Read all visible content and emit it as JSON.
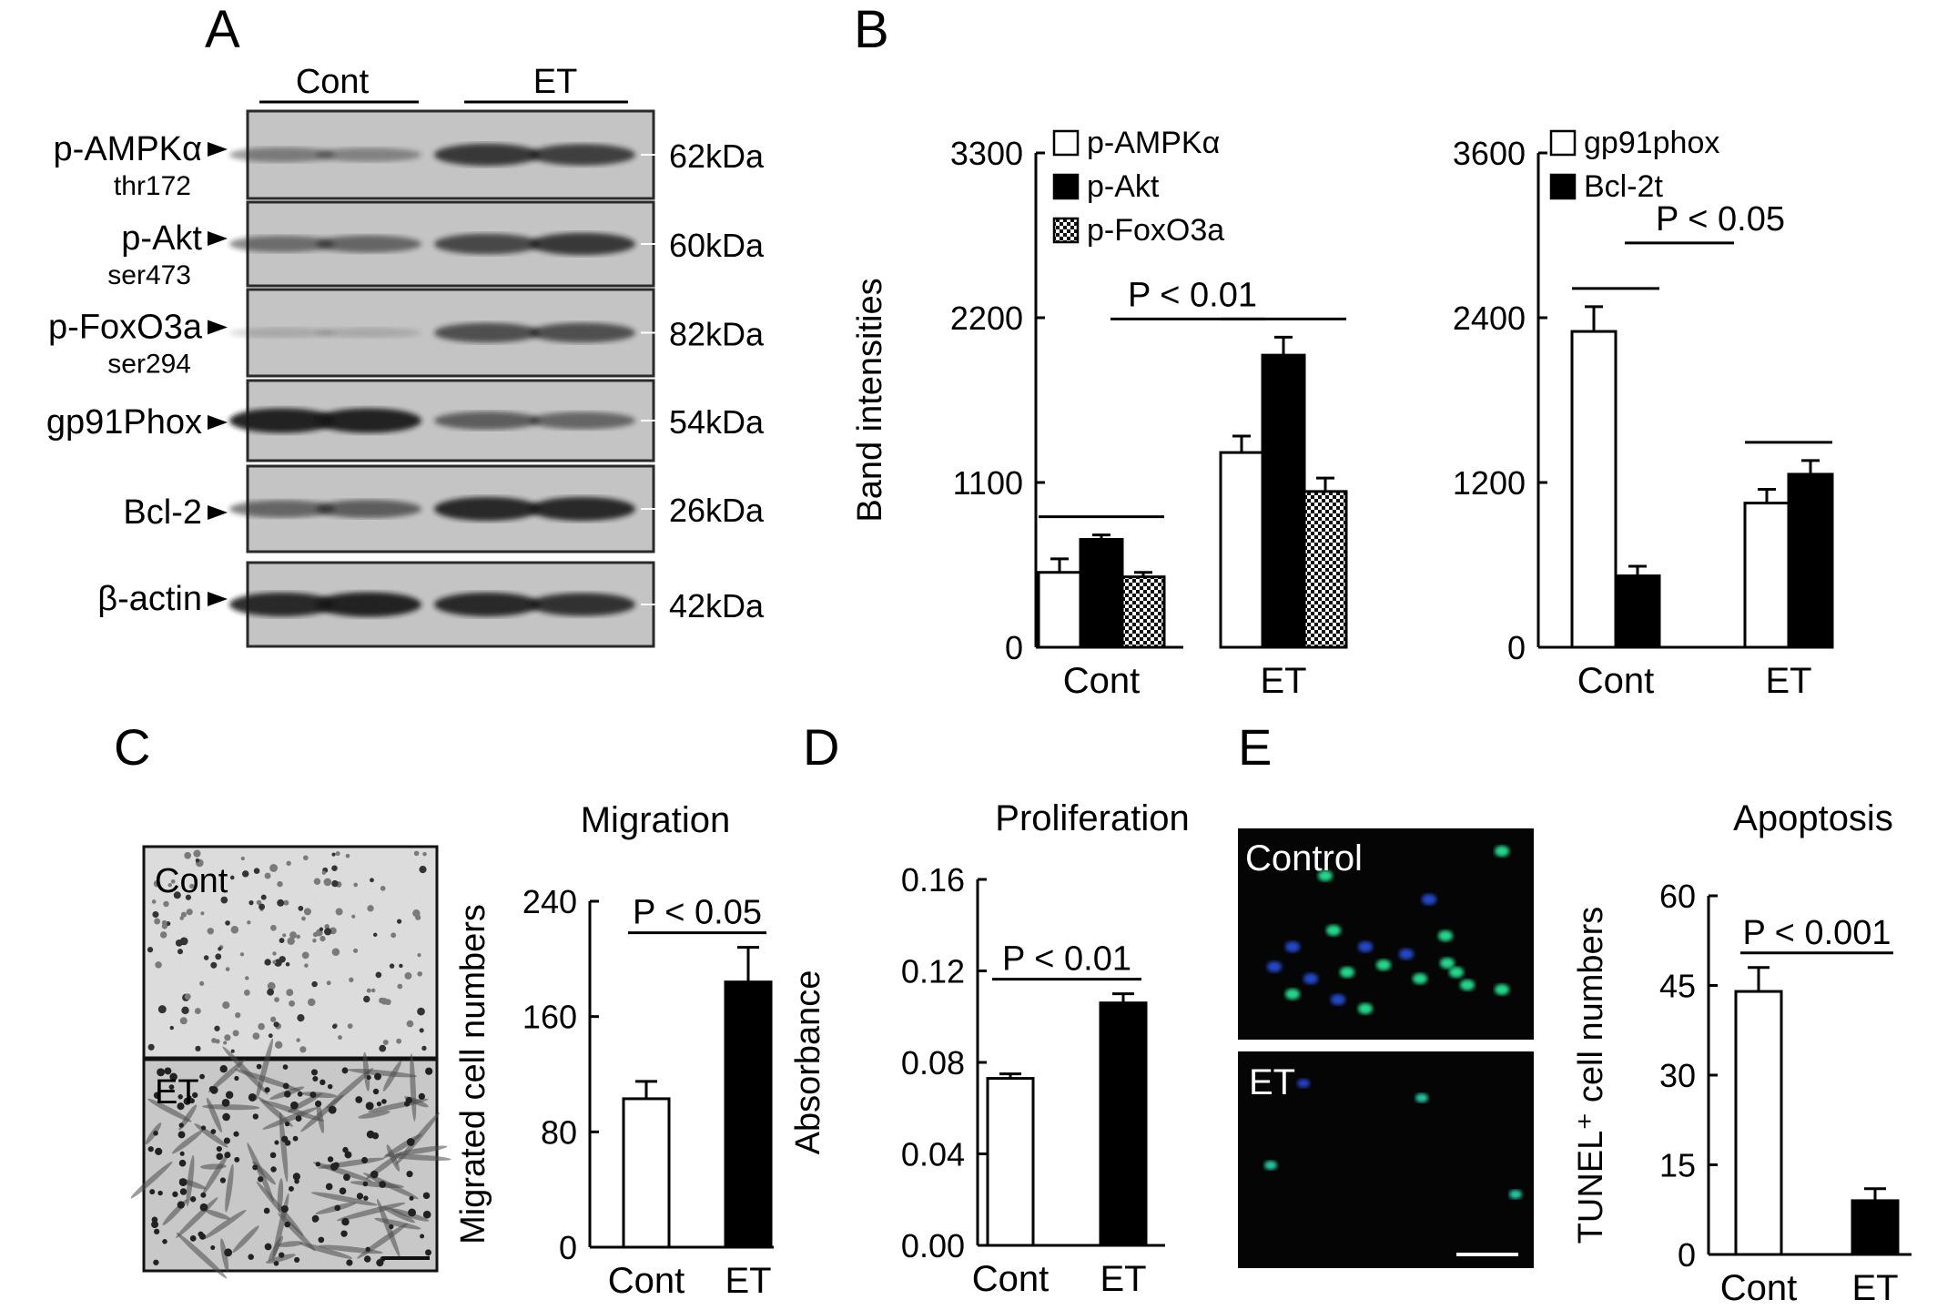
{
  "panels": {
    "a": {
      "letter": "A",
      "groups": [
        "Cont",
        "ET"
      ],
      "rows": [
        {
          "label": "p-AMPKα",
          "sub": "thr172",
          "kda": "62kDa",
          "intensity": [
            0.35,
            0.3,
            0.8,
            0.75
          ]
        },
        {
          "label": "p-Akt",
          "sub": "ser473",
          "kda": "60kDa",
          "intensity": [
            0.45,
            0.5,
            0.7,
            0.8
          ]
        },
        {
          "label": "p-FoxO3a",
          "sub": "ser294",
          "kda": "82kDa",
          "intensity": [
            0.05,
            0.05,
            0.65,
            0.65
          ]
        },
        {
          "label": "gp91Phox",
          "sub": "",
          "kda": "54kDa",
          "intensity": [
            0.95,
            0.95,
            0.55,
            0.5
          ]
        },
        {
          "label": "Bcl-2",
          "sub": "",
          "kda": "26kDa",
          "intensity": [
            0.5,
            0.55,
            0.9,
            0.9
          ]
        },
        {
          "label": "β-actin",
          "sub": "",
          "kda": "42kDa",
          "intensity": [
            0.9,
            0.95,
            0.9,
            0.85
          ]
        }
      ]
    },
    "b": {
      "letter": "B"
    },
    "c": {
      "letter": "C",
      "image_labels": [
        "Cont",
        "ET"
      ]
    },
    "d": {
      "letter": "D"
    },
    "e": {
      "letter": "E",
      "image_labels": [
        "Control",
        "ET"
      ]
    }
  },
  "chart_data": [
    {
      "id": "b1",
      "type": "bar",
      "panel": "B",
      "ylabel": "Band intensities",
      "yticks": [
        "0",
        "1100",
        "2200",
        "3300"
      ],
      "ylim": [
        0,
        3300
      ],
      "categories": [
        "Cont",
        "ET"
      ],
      "series": [
        {
          "name": "p-AMPKα",
          "fill": "white",
          "values": [
            500,
            1300
          ],
          "errors": [
            90,
            110
          ]
        },
        {
          "name": "p-Akt",
          "fill": "black",
          "values": [
            720,
            1950
          ],
          "errors": [
            30,
            120
          ]
        },
        {
          "name": "p-FoxO3a",
          "fill": "checker",
          "values": [
            470,
            1040
          ],
          "errors": [
            30,
            90
          ]
        }
      ],
      "annotation": "P < 0.01",
      "legend": "top-left"
    },
    {
      "id": "b2",
      "type": "bar",
      "panel": "B",
      "yticks": [
        "0",
        "1200",
        "2400",
        "3600"
      ],
      "ylim": [
        0,
        3600
      ],
      "categories": [
        "Cont",
        "ET"
      ],
      "series": [
        {
          "name": "gp91phox",
          "fill": "white",
          "values": [
            2300,
            1050
          ],
          "errors": [
            180,
            100
          ]
        },
        {
          "name": "Bcl-2t",
          "fill": "black",
          "values": [
            520,
            1260
          ],
          "errors": [
            70,
            100
          ]
        }
      ],
      "annotation": "P < 0.05",
      "legend": "top-left"
    },
    {
      "id": "c",
      "type": "bar",
      "panel": "C",
      "title": "Migration",
      "ylabel": "Migrated cell numbers",
      "yticks": [
        "0",
        "80",
        "160",
        "240"
      ],
      "ylim": [
        0,
        240
      ],
      "categories": [
        "Cont",
        "ET"
      ],
      "series": [
        {
          "fills": [
            "white",
            "black"
          ],
          "values": [
            103,
            184
          ],
          "errors": [
            12,
            24
          ]
        }
      ],
      "annotation": "P < 0.05"
    },
    {
      "id": "d",
      "type": "bar",
      "panel": "D",
      "title": "Proliferation",
      "ylabel": "Absorbance",
      "yticks": [
        "0.00",
        "0.04",
        "0.08",
        "0.12",
        "0.16"
      ],
      "ylim": [
        0,
        0.16
      ],
      "categories": [
        "Cont",
        "ET"
      ],
      "series": [
        {
          "fills": [
            "white",
            "black"
          ],
          "values": [
            0.073,
            0.106
          ],
          "errors": [
            0.002,
            0.004
          ]
        }
      ],
      "annotation": "P < 0.01"
    },
    {
      "id": "e",
      "type": "bar",
      "panel": "E",
      "title": "Apoptosis",
      "ylabel": "TUNEL⁺ cell numbers",
      "yticks": [
        "0",
        "15",
        "30",
        "45",
        "60"
      ],
      "ylim": [
        0,
        60
      ],
      "categories": [
        "Cont",
        "ET"
      ],
      "series": [
        {
          "fills": [
            "white",
            "black"
          ],
          "values": [
            44,
            9
          ],
          "errors": [
            4,
            2
          ]
        }
      ],
      "annotation": "P < 0.001"
    }
  ]
}
